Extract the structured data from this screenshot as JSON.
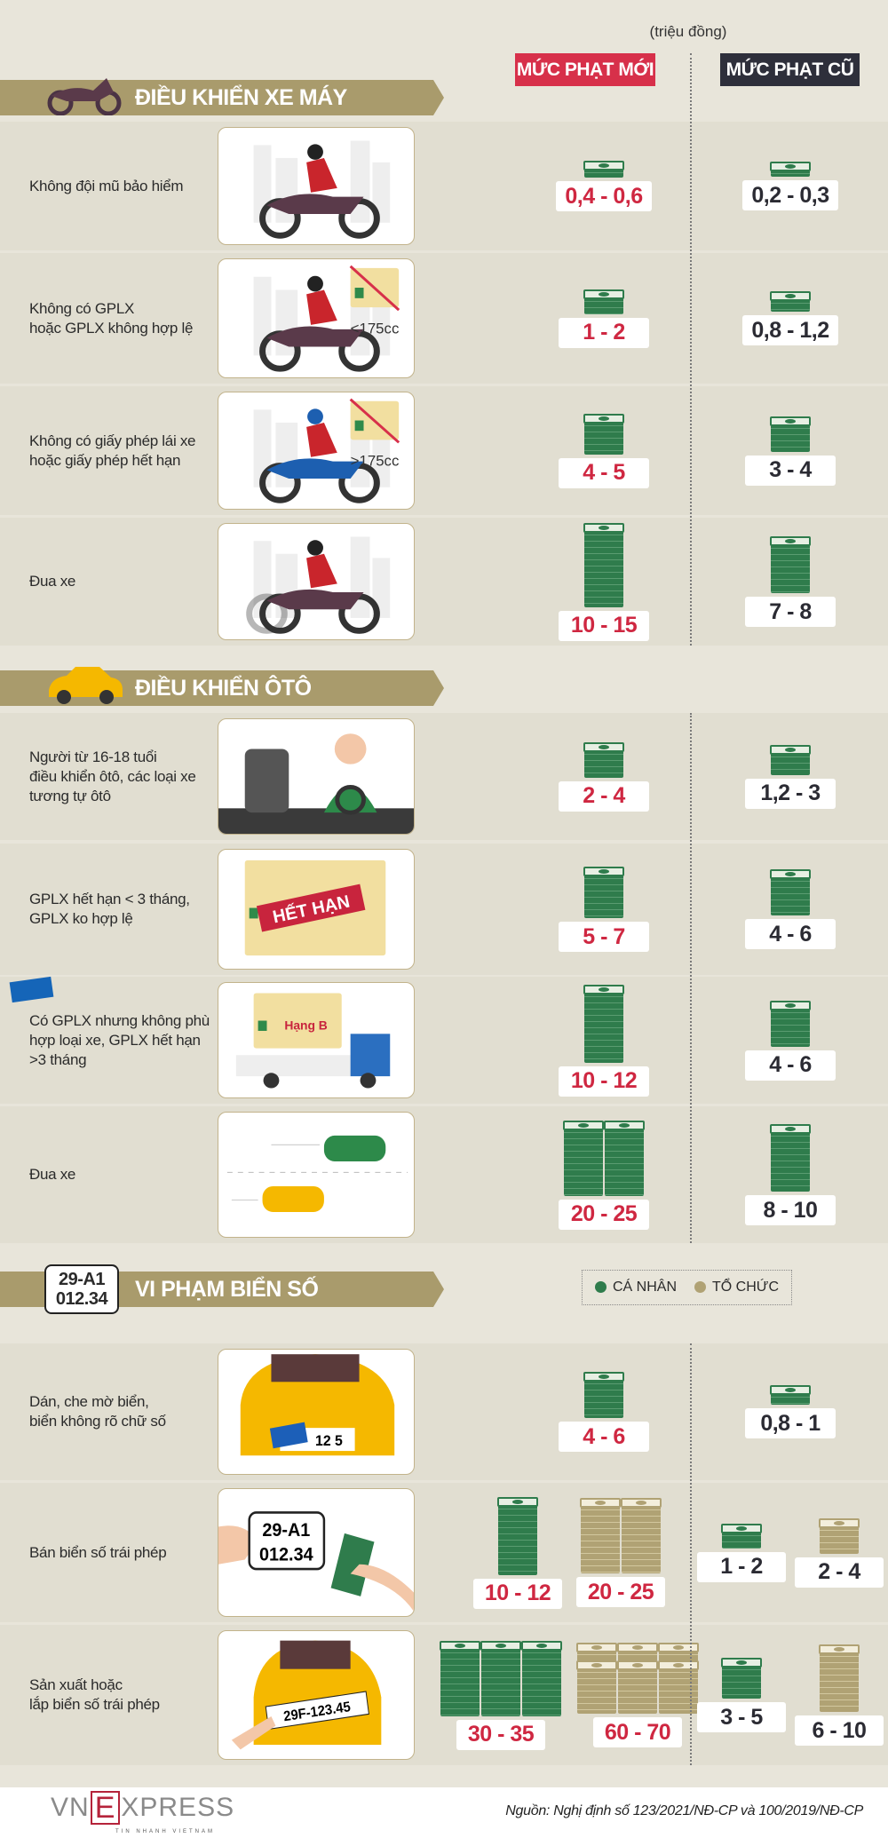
{
  "unit": "(triệu đồng)",
  "columns": {
    "new": "MỨC PHẠT MỚI",
    "old": "MỨC PHẠT CŨ"
  },
  "colors": {
    "new_header": "#d7304a",
    "old_header": "#2e2f3b",
    "band": "#a99b6c",
    "personal": "#2f7c4c",
    "organization": "#b0a274",
    "new_value": "#cf2741"
  },
  "sections": [
    {
      "title": "ĐIỀU KHIỂN XE MÁY",
      "icon": "motorbike-icon",
      "rows": [
        {
          "label": "Không đội mũ bảo hiểm",
          "illustration": "moto",
          "new": [
            {
              "value": "0,4 - 0,6",
              "max": 0.6,
              "type": "personal"
            }
          ],
          "old": [
            {
              "value": "0,2 - 0,3",
              "max": 0.3,
              "type": "personal"
            }
          ]
        },
        {
          "label": "Không có GPLX\nhoặc GPLX không hợp lệ",
          "illustration": "moto-license",
          "caption": "<175cc",
          "new": [
            {
              "value": "1 - 2",
              "max": 2,
              "type": "personal"
            }
          ],
          "old": [
            {
              "value": "0,8 - 1,2",
              "max": 1.2,
              "type": "personal"
            }
          ]
        },
        {
          "label": "Không có giấy phép lái xe\nhoặc giấy phép hết hạn",
          "illustration": "sport-moto-license",
          "caption": ">175cc",
          "new": [
            {
              "value": "4 - 5",
              "max": 5,
              "type": "personal"
            }
          ],
          "old": [
            {
              "value": "3 - 4",
              "max": 4,
              "type": "personal"
            }
          ]
        },
        {
          "label": "Đua xe",
          "illustration": "moto-race",
          "new": [
            {
              "value": "10 - 15",
              "max": 15,
              "type": "personal"
            }
          ],
          "old": [
            {
              "value": "7 - 8",
              "max": 8,
              "type": "personal"
            }
          ]
        }
      ]
    },
    {
      "title": "ĐIỀU KHIỂN ÔTÔ",
      "icon": "car-icon",
      "rows": [
        {
          "label": "Người từ 16-18 tuổi\nđiều khiển ôtô, các loại xe\ntương tự ôtô",
          "illustration": "driver",
          "new": [
            {
              "value": "2 - 4",
              "max": 4,
              "type": "personal"
            }
          ],
          "old": [
            {
              "value": "1,2 - 3",
              "max": 3,
              "type": "personal"
            }
          ]
        },
        {
          "label": "GPLX hết hạn < 3 tháng,\nGPLX ko hợp lệ",
          "illustration": "expired-license",
          "caption": "HẾT HẠN",
          "new": [
            {
              "value": "5 - 7",
              "max": 7,
              "type": "personal"
            }
          ],
          "old": [
            {
              "value": "4 - 6",
              "max": 6,
              "type": "personal"
            }
          ]
        },
        {
          "label": "Có GPLX nhưng không phù\nhợp loại xe, GPLX hết hạn\n>3 tháng",
          "illustration": "truck-license",
          "caption": "Hạng B",
          "new": [
            {
              "value": "10 - 12",
              "max": 12,
              "type": "personal"
            }
          ],
          "old": [
            {
              "value": "4 - 6",
              "max": 6,
              "type": "personal"
            }
          ]
        },
        {
          "label": "Đua xe",
          "illustration": "car-race",
          "new": [
            {
              "value": "20 - 25",
              "max": 25,
              "type": "personal"
            }
          ],
          "old": [
            {
              "value": "8 - 10",
              "max": 10,
              "type": "personal"
            }
          ]
        }
      ]
    },
    {
      "title": "VI PHẠM BIỂN SỐ",
      "icon": "license-plate-icon",
      "plate": {
        "line1": "29-A1",
        "line2": "012.34"
      },
      "rows": [
        {
          "label": "Dán, che mờ biển,\nbiển không rõ chữ số",
          "illustration": "covered-plate",
          "caption": "12 5",
          "new": [
            {
              "value": "4 - 6",
              "max": 6,
              "type": "personal"
            }
          ],
          "old": [
            {
              "value": "0,8 - 1",
              "max": 1,
              "type": "personal"
            }
          ]
        },
        {
          "label": "Bán biển số trái phép",
          "illustration": "sell-plate",
          "caption": "29-A1\n012.34",
          "new": [
            {
              "value": "10 - 12",
              "max": 12,
              "type": "personal"
            },
            {
              "value": "20 - 25",
              "max": 25,
              "type": "organization"
            }
          ],
          "old": [
            {
              "value": "1 - 2",
              "max": 2,
              "type": "personal"
            },
            {
              "value": "2 - 4",
              "max": 4,
              "type": "organization"
            }
          ]
        },
        {
          "label": "Sản xuất hoặc\nlắp biển số trái phép",
          "illustration": "install-plate",
          "caption": "29F-123.45",
          "new": [
            {
              "value": "30 - 35",
              "max": 35,
              "type": "personal"
            },
            {
              "value": "60 - 70",
              "max": 70,
              "type": "organization"
            }
          ],
          "old": [
            {
              "value": "3 - 5",
              "max": 5,
              "type": "personal"
            },
            {
              "value": "6 - 10",
              "max": 10,
              "type": "organization"
            }
          ]
        }
      ]
    }
  ],
  "legend": {
    "personal": "CÁ NHÂN",
    "organization": "TỔ CHỨC"
  },
  "footer": {
    "logo": "VNEXPRESS",
    "tagline": "TIN NHANH VIETNAM",
    "source": "Nguồn: Nghị định số 123/2021/NĐ-CP và 100/2019/NĐ-CP"
  }
}
